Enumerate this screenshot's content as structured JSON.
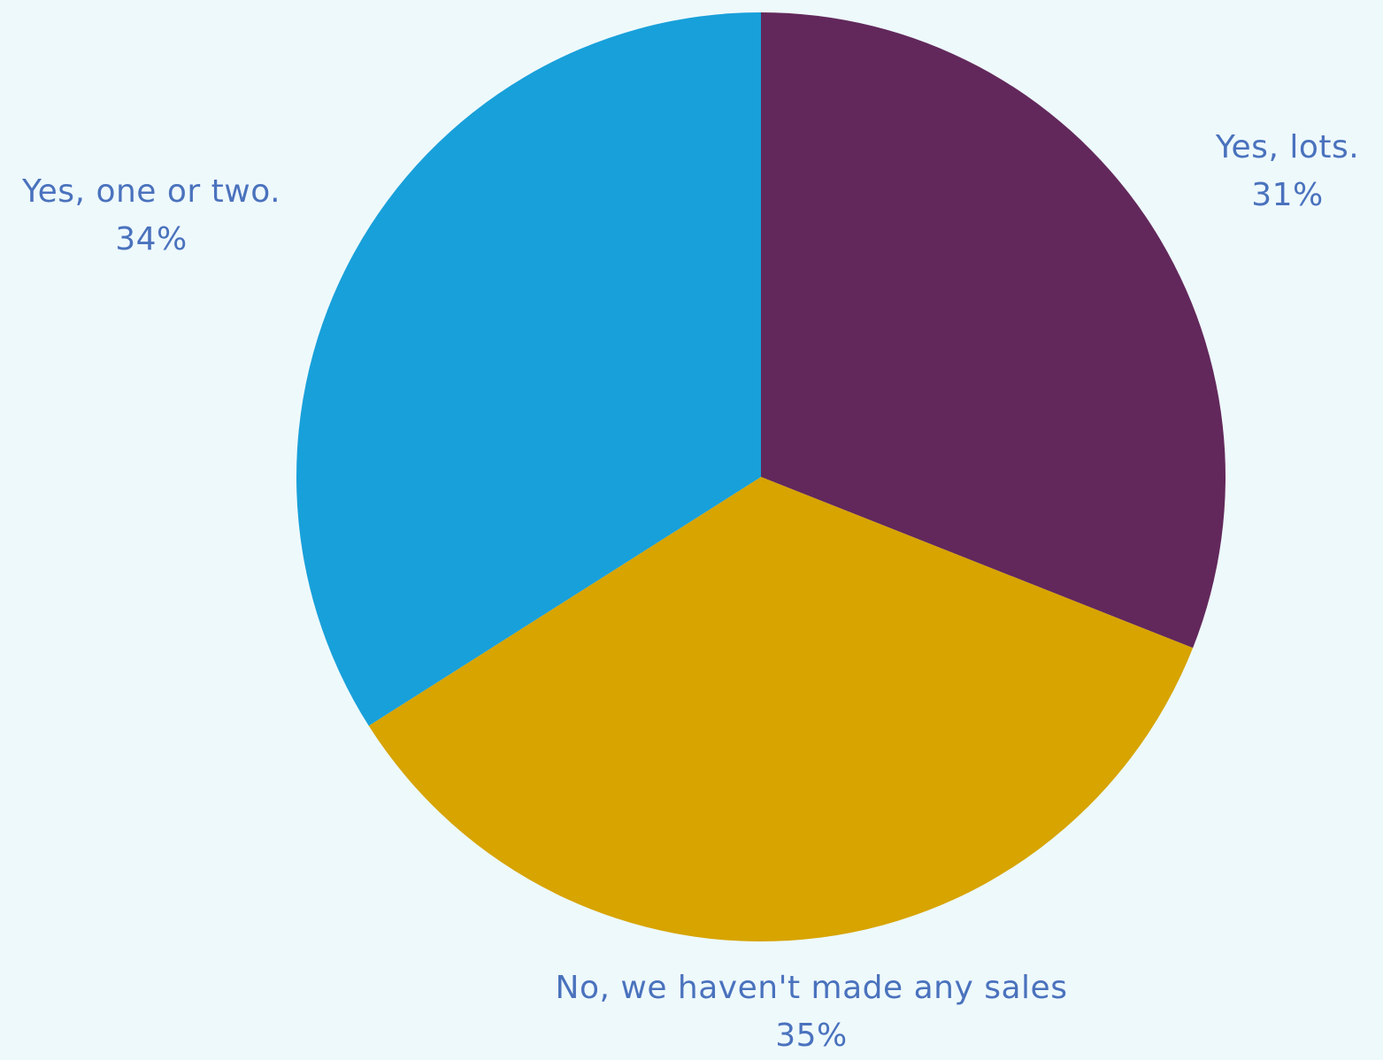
{
  "chart_data": {
    "type": "pie",
    "start_angle_deg": 0,
    "direction": "clockwise",
    "slices": [
      {
        "label": "Yes, lots.",
        "value": 31,
        "value_label": "31%",
        "color": "#62285b"
      },
      {
        "label": "No, we haven't made any sales",
        "value": 35,
        "value_label": "35%",
        "color": "#d7a400"
      },
      {
        "label": "Yes, one or two.",
        "value": 34,
        "value_label": "34%",
        "color": "#18a0da"
      }
    ]
  },
  "colors": {
    "background": "#eef9fc",
    "label_text": "#4a72bd"
  }
}
